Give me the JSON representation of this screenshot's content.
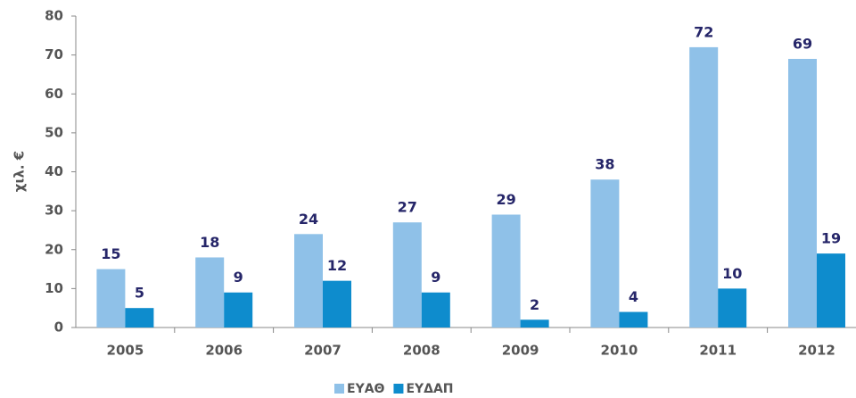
{
  "chart_data": {
    "type": "bar",
    "y_label": "χιλ. €",
    "categories": [
      "2005",
      "2006",
      "2007",
      "2008",
      "2009",
      "2010",
      "2011",
      "2012"
    ],
    "series": [
      {
        "name": "ΕΥΑΘ",
        "color": "#8fc1e8",
        "values": [
          15,
          18,
          24,
          27,
          29,
          38,
          72,
          69
        ]
      },
      {
        "name": "ΕΥΔΑΠ",
        "color": "#0e8ccd",
        "values": [
          5,
          9,
          12,
          9,
          2,
          4,
          10,
          19
        ]
      }
    ],
    "ylim": [
      0,
      80
    ],
    "yticks": [
      0,
      10,
      20,
      30,
      40,
      50,
      60,
      70,
      80
    ],
    "grid": false
  }
}
